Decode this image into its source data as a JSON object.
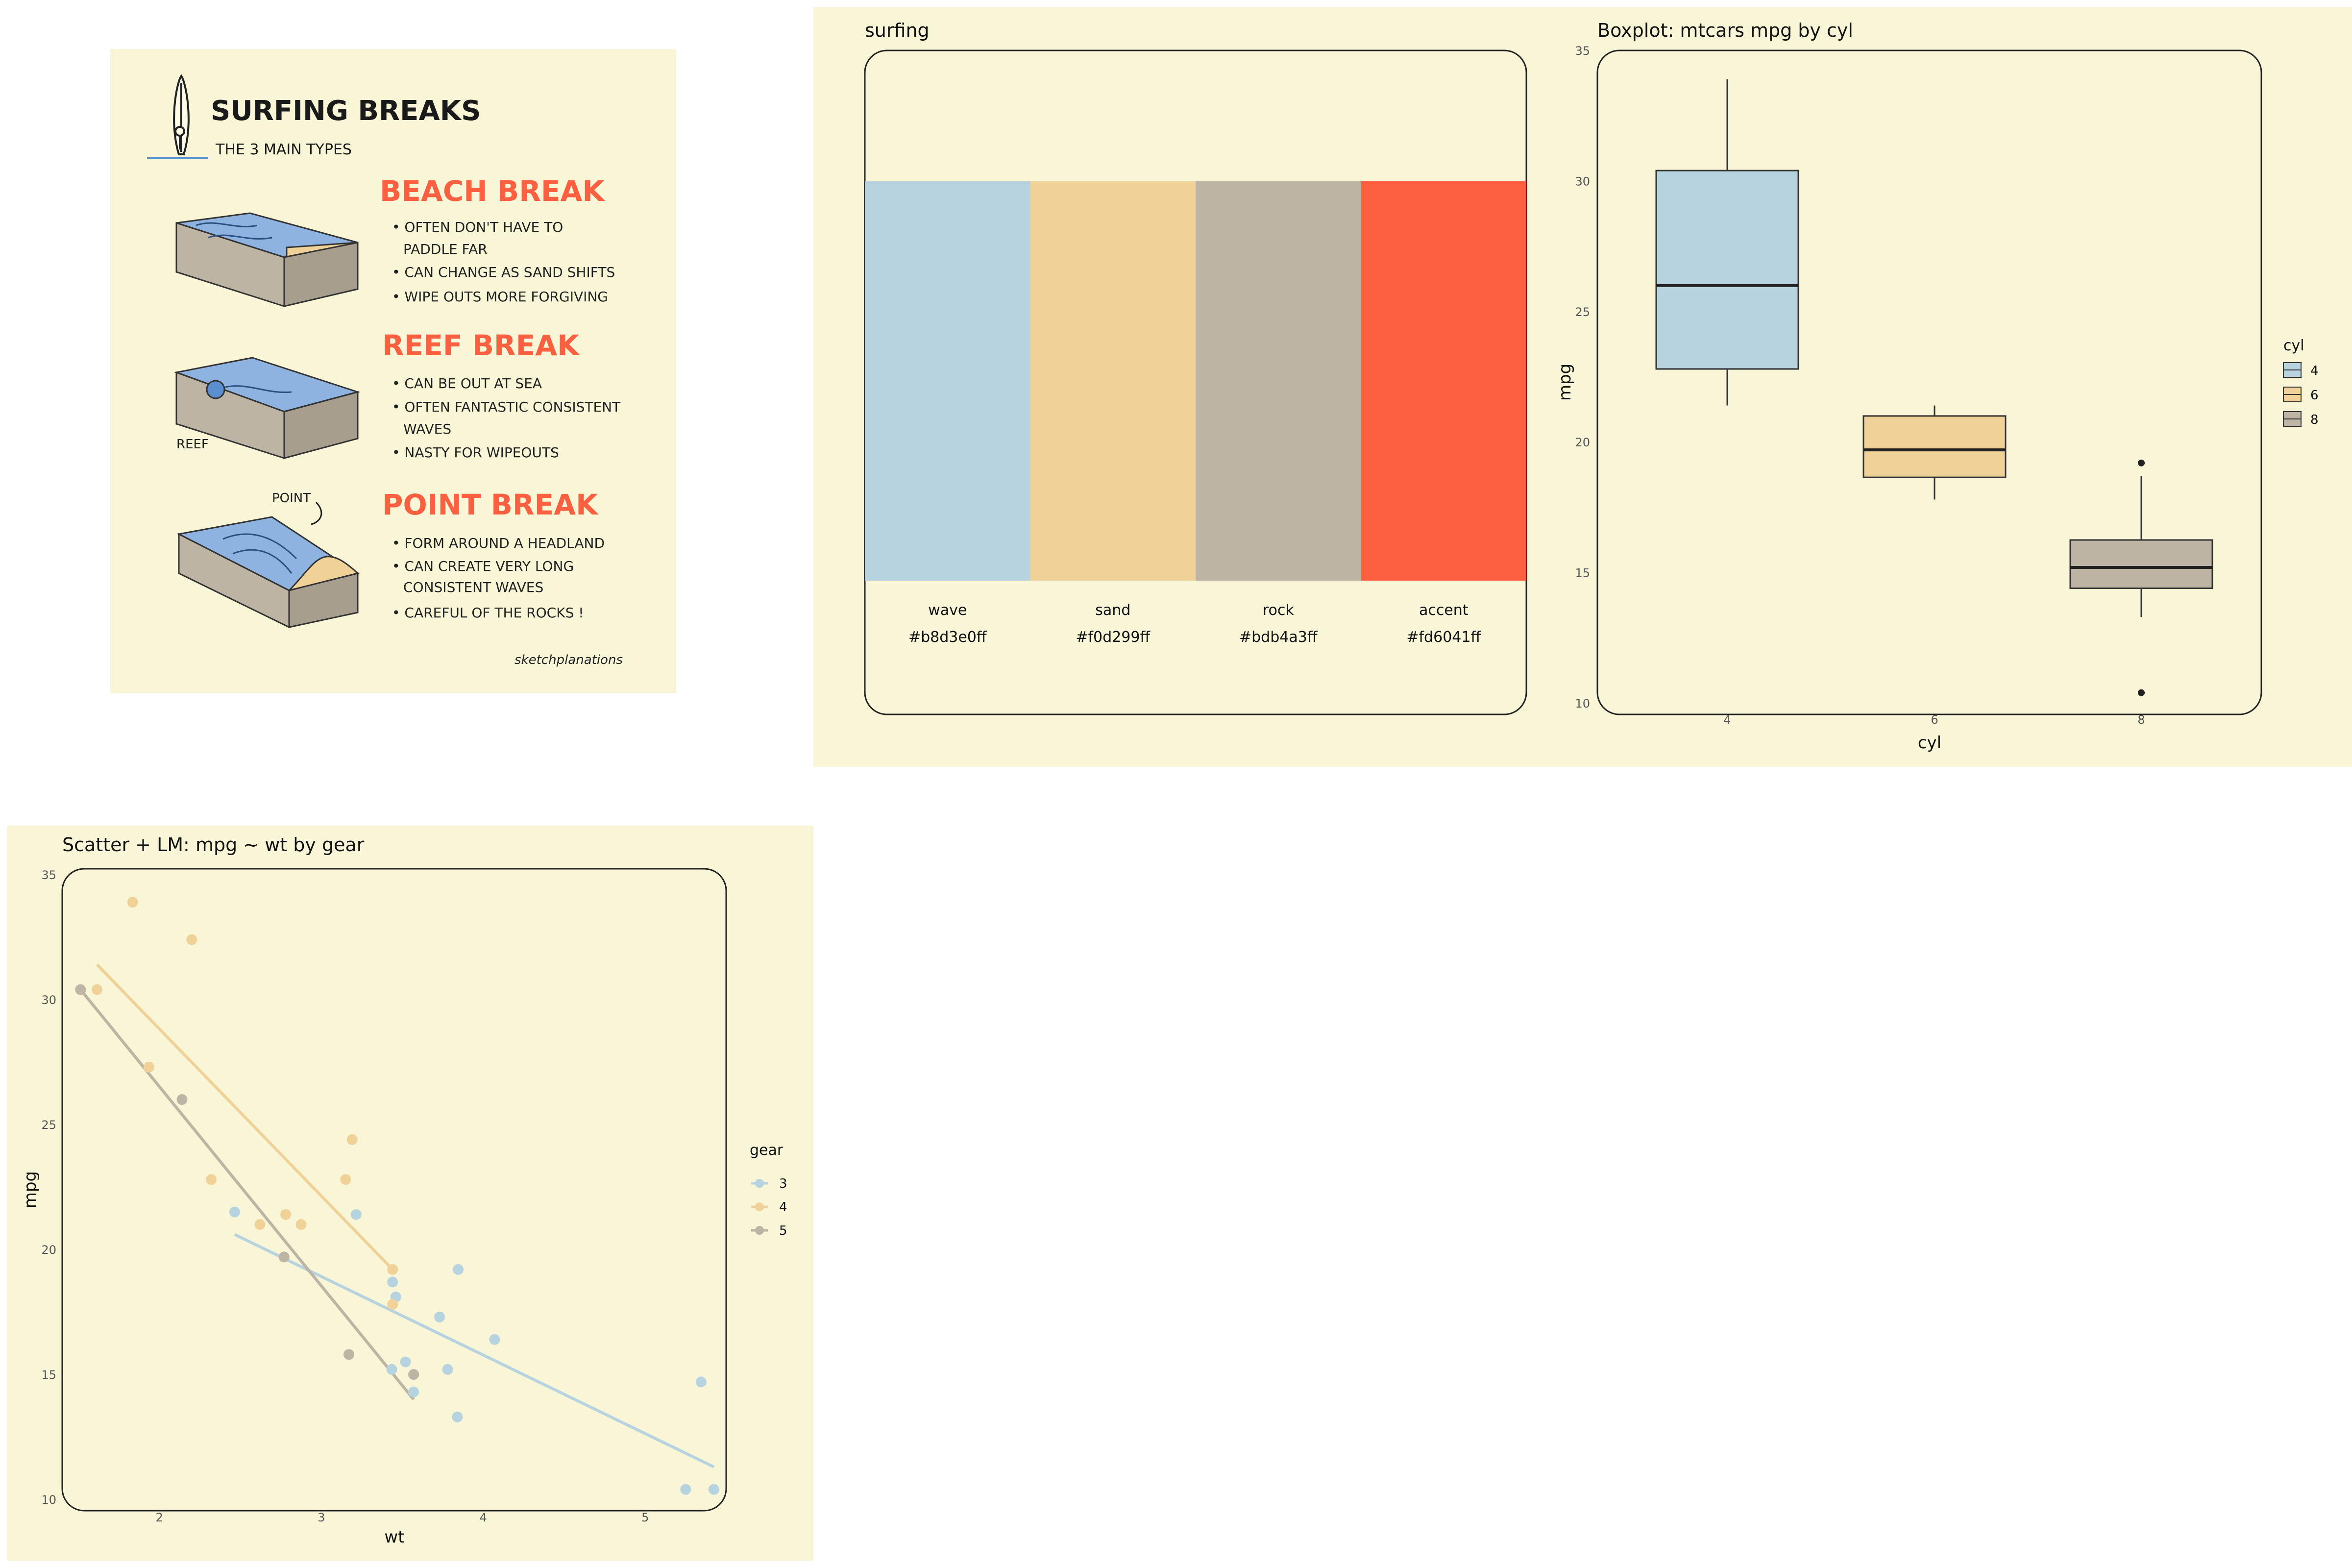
{
  "illustration": {
    "title": "SURFING BREAKS",
    "subtitle": "THE 3 MAIN TYPES",
    "credit": "sketchplanations",
    "breaks": [
      {
        "heading": "BEACH BREAK",
        "bullets": [
          "• OFTEN DON'T HAVE TO",
          "PADDLE FAR",
          "• CAN CHANGE AS SAND SHIFTS",
          "• WIPE OUTS MORE FORGIVING"
        ]
      },
      {
        "heading": "REEF BREAK",
        "label": "REEF",
        "bullets": [
          "• CAN BE OUT AT SEA",
          "• OFTEN FANTASTIC CONSISTENT",
          "WAVES",
          "• NASTY FOR WIPEOUTS"
        ]
      },
      {
        "heading": "POINT BREAK",
        "label": "POINT",
        "bullets": [
          "• FORM AROUND A HEADLAND",
          "• CAN CREATE VERY LONG",
          "CONSISTENT WAVES",
          "• CAREFUL OF THE ROCKS !"
        ]
      }
    ],
    "colors": {
      "heading": "#fd6041",
      "water": "#8fb3e0",
      "sand": "#f0d299",
      "rock": "#bdb4a3"
    }
  },
  "chart_data": [
    {
      "type": "table",
      "title": "surfing",
      "swatches": [
        {
          "name": "wave",
          "hex": "#b8d3e0ff",
          "color": "#b8d3e0"
        },
        {
          "name": "sand",
          "hex": "#f0d299ff",
          "color": "#f0d299"
        },
        {
          "name": "rock",
          "hex": "#bdb4a3ff",
          "color": "#bdb4a3"
        },
        {
          "name": "accent",
          "hex": "#fd6041ff",
          "color": "#fd6041"
        }
      ]
    },
    {
      "type": "box",
      "title": "Boxplot: mtcars mpg by cyl",
      "xlabel": "cyl",
      "ylabel": "mpg",
      "ylim": [
        10,
        35
      ],
      "yticks": [
        10,
        15,
        20,
        25,
        30,
        35
      ],
      "legend_title": "cyl",
      "legend_position": "right",
      "groups": [
        {
          "name": "4",
          "color": "#b8d3e0",
          "min": 21.4,
          "q1": 22.8,
          "median": 26.0,
          "q3": 30.4,
          "max": 33.9,
          "outliers": []
        },
        {
          "name": "6",
          "color": "#f0d299",
          "min": 17.8,
          "q1": 18.65,
          "median": 19.7,
          "q3": 21.0,
          "max": 21.4,
          "outliers": []
        },
        {
          "name": "8",
          "color": "#bdb4a3",
          "min": 13.3,
          "q1": 14.4,
          "median": 15.2,
          "q3": 16.25,
          "max": 18.7,
          "outliers": [
            10.4,
            19.2
          ]
        }
      ]
    },
    {
      "type": "scatter",
      "title": "Scatter + LM: mpg ~ wt by gear",
      "xlabel": "wt",
      "ylabel": "mpg",
      "xlim": [
        1.4,
        5.5
      ],
      "ylim": [
        10,
        35
      ],
      "xticks": [
        2,
        3,
        4,
        5
      ],
      "yticks": [
        10,
        15,
        20,
        25,
        30,
        35
      ],
      "legend_title": "gear",
      "legend_position": "right",
      "series": [
        {
          "name": "3",
          "color": "#b8d3e0",
          "points": [
            [
              3.215,
              21.4
            ],
            [
              3.44,
              18.7
            ],
            [
              3.46,
              18.1
            ],
            [
              3.57,
              14.3
            ],
            [
              4.07,
              16.4
            ],
            [
              3.73,
              17.3
            ],
            [
              3.78,
              15.2
            ],
            [
              5.25,
              10.4
            ],
            [
              5.424,
              10.4
            ],
            [
              5.345,
              14.7
            ],
            [
              2.465,
              21.5
            ],
            [
              3.52,
              15.5
            ],
            [
              3.435,
              15.2
            ],
            [
              3.84,
              13.3
            ],
            [
              3.845,
              19.2
            ]
          ],
          "fit": [
            [
              2.465,
              20.6
            ],
            [
              5.424,
              11.3
            ]
          ]
        },
        {
          "name": "4",
          "color": "#f0d299",
          "points": [
            [
              2.62,
              21.0
            ],
            [
              2.875,
              21.0
            ],
            [
              2.32,
              22.8
            ],
            [
              3.19,
              24.4
            ],
            [
              3.15,
              22.8
            ],
            [
              3.44,
              19.2
            ],
            [
              3.44,
              17.8
            ],
            [
              2.2,
              32.4
            ],
            [
              1.615,
              30.4
            ],
            [
              1.835,
              33.9
            ],
            [
              1.935,
              27.3
            ],
            [
              2.78,
              21.4
            ]
          ],
          "fit": [
            [
              1.615,
              31.4
            ],
            [
              3.44,
              19.2
            ]
          ]
        },
        {
          "name": "5",
          "color": "#bdb4a3",
          "points": [
            [
              2.14,
              26.0
            ],
            [
              1.513,
              30.4
            ],
            [
              3.17,
              15.8
            ],
            [
              2.77,
              19.7
            ],
            [
              3.57,
              15.0
            ]
          ],
          "fit": [
            [
              1.513,
              30.4
            ],
            [
              3.57,
              14.0
            ]
          ]
        }
      ]
    }
  ]
}
